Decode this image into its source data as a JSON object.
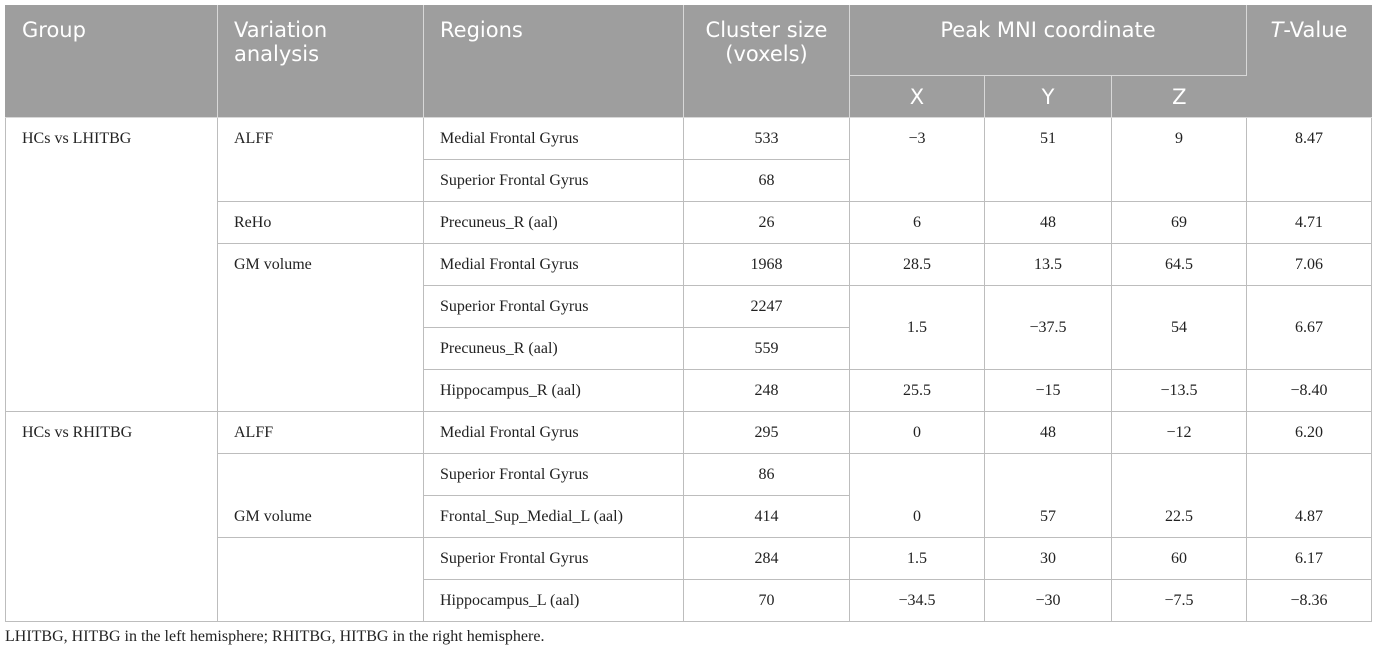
{
  "header": {
    "group": "Group",
    "variation_line1": "Variation",
    "variation_line2": "analysis",
    "regions": "Regions",
    "cluster_line1": "Cluster size",
    "cluster_line2": "(voxels)",
    "peak": "Peak MNI coordinate",
    "t_italic": "T",
    "t_rest": "-Value",
    "x": "X",
    "y": "Y",
    "z": "Z"
  },
  "groups": {
    "g1": "HCs vs LHITBG",
    "g2": "HCs vs RHITBG"
  },
  "analyses": {
    "a1": "ALFF",
    "a2": "ReHo",
    "a3": "GM volume",
    "a4": "ALFF",
    "a5": "GM volume"
  },
  "rows": [
    {
      "region": "Medial Frontal Gyrus",
      "cluster": "533",
      "x": "−3",
      "y": "51",
      "z": "9",
      "t": "8.47"
    },
    {
      "region": "Superior Frontal Gyrus",
      "cluster": "68",
      "x": "",
      "y": "",
      "z": "",
      "t": ""
    },
    {
      "region": "Precuneus_R (aal)",
      "cluster": "26",
      "x": "6",
      "y": "48",
      "z": "69",
      "t": "4.71"
    },
    {
      "region": "Medial Frontal Gyrus",
      "cluster": "1968",
      "x": "28.5",
      "y": "13.5",
      "z": "64.5",
      "t": "7.06"
    },
    {
      "region": "Superior Frontal Gyrus",
      "cluster": "2247",
      "x": "",
      "y": "",
      "z": "",
      "t": ""
    },
    {
      "region": "Precuneus_R (aal)",
      "cluster": "559",
      "x": "1.5",
      "y": "−37.5",
      "z": "54",
      "t": "6.67"
    },
    {
      "region": "Hippocampus_R (aal)",
      "cluster": "248",
      "x": "25.5",
      "y": "−15",
      "z": "−13.5",
      "t": "−8.40"
    },
    {
      "region": "Medial Frontal Gyrus",
      "cluster": "295",
      "x": "0",
      "y": "48",
      "z": "−12",
      "t": "6.20"
    },
    {
      "region": "Superior Frontal Gyrus",
      "cluster": "86",
      "x": "",
      "y": "",
      "z": "",
      "t": ""
    },
    {
      "region": "Frontal_Sup_Medial_L (aal)",
      "cluster": "414",
      "x": "0",
      "y": "57",
      "z": "22.5",
      "t": "4.87"
    },
    {
      "region": "Superior Frontal Gyrus",
      "cluster": "284",
      "x": "1.5",
      "y": "30",
      "z": "60",
      "t": "6.17"
    },
    {
      "region": "Hippocampus_L (aal)",
      "cluster": "70",
      "x": "−34.5",
      "y": "−30",
      "z": "−7.5",
      "t": "−8.36"
    }
  ],
  "footnote": "LHITBG, HITBG in the left hemisphere; RHITBG, HITBG in the right hemisphere."
}
